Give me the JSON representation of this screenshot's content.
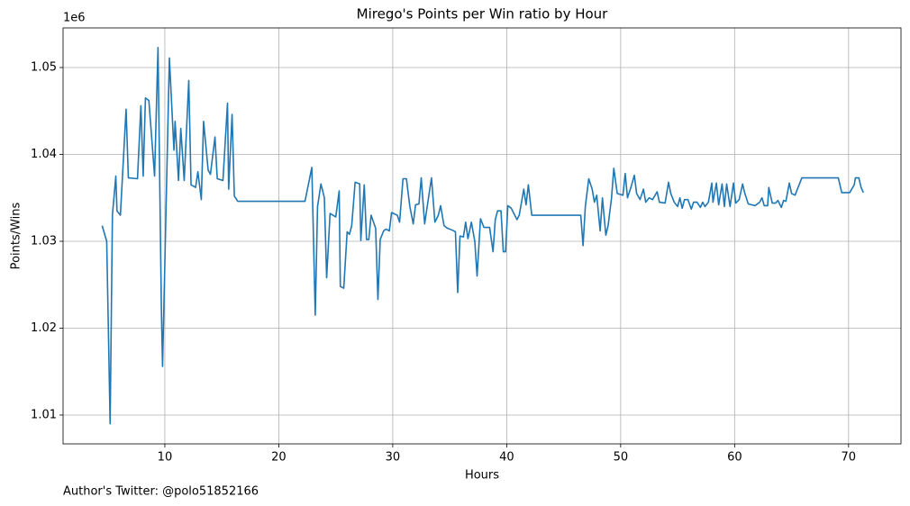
{
  "chart_data": {
    "type": "line",
    "title": "Mirego's Points per Win ratio by Hour",
    "x_label": "Hours",
    "y_label": "Points/Wins",
    "y_offset_label": "1e6",
    "footer": "Author's Twitter: @polo51852166",
    "color": "#1f77b4",
    "grid": true,
    "xlim": [
      1.07,
      74.6
    ],
    "ylim": [
      1006680,
      1054560
    ],
    "xticks": [
      10,
      20,
      30,
      40,
      50,
      60,
      70
    ],
    "yticks": [
      {
        "value": 1010000,
        "label": "1.01"
      },
      {
        "value": 1020000,
        "label": "1.02"
      },
      {
        "value": 1030000,
        "label": "1.03"
      },
      {
        "value": 1040000,
        "label": "1.04"
      },
      {
        "value": 1050000,
        "label": "1.05"
      }
    ],
    "x": [
      4.5,
      4.9,
      5.2,
      5.4,
      5.7,
      5.8,
      6.1,
      6.6,
      6.8,
      7.6,
      7.9,
      8.1,
      8.3,
      8.6,
      9.1,
      9.4,
      9.7,
      9.8,
      10.4,
      10.8,
      10.9,
      11.2,
      11.4,
      11.7,
      12.1,
      12.3,
      12.7,
      12.9,
      13.2,
      13.4,
      13.8,
      14.0,
      14.4,
      14.6,
      15.1,
      15.5,
      15.6,
      15.9,
      16.1,
      16.4,
      22.3,
      22.9,
      23.2,
      23.4,
      23.7,
      24.0,
      24.2,
      24.5,
      25.0,
      25.3,
      25.4,
      25.7,
      26.0,
      26.2,
      26.4,
      26.7,
      27.1,
      27.2,
      27.5,
      27.7,
      27.9,
      28.1,
      28.5,
      28.7,
      28.9,
      29.2,
      29.4,
      29.7,
      29.9,
      30.4,
      30.6,
      30.9,
      31.2,
      31.5,
      31.8,
      32.0,
      32.3,
      32.5,
      32.8,
      33.0,
      33.4,
      33.7,
      34.0,
      34.2,
      34.5,
      34.8,
      35.2,
      35.5,
      35.7,
      35.9,
      36.2,
      36.4,
      36.6,
      36.9,
      37.2,
      37.4,
      37.7,
      38.0,
      38.5,
      38.8,
      39.0,
      39.2,
      39.5,
      39.7,
      39.9,
      40.1,
      40.4,
      40.9,
      41.1,
      41.5,
      41.7,
      41.9,
      42.2,
      46.5,
      46.7,
      46.9,
      47.2,
      47.5,
      47.7,
      47.9,
      48.2,
      48.4,
      48.7,
      48.9,
      49.2,
      49.4,
      49.7,
      50.2,
      50.4,
      50.6,
      50.9,
      51.2,
      51.4,
      51.7,
      52.0,
      52.2,
      52.5,
      52.8,
      53.2,
      53.4,
      53.9,
      54.2,
      54.4,
      54.7,
      55.0,
      55.2,
      55.4,
      55.6,
      55.9,
      56.2,
      56.4,
      56.7,
      57.0,
      57.2,
      57.4,
      57.7,
      58.0,
      58.1,
      58.4,
      58.6,
      58.9,
      59.1,
      59.3,
      59.6,
      59.9,
      60.1,
      60.4,
      60.7,
      60.9,
      61.2,
      61.8,
      62.2,
      62.4,
      62.6,
      62.9,
      63.0,
      63.3,
      63.6,
      63.8,
      64.1,
      64.3,
      64.5,
      64.8,
      65.0,
      65.3,
      65.6,
      65.9,
      69.1,
      69.4,
      70.1,
      70.5,
      70.6,
      70.9,
      71.1,
      71.3
    ],
    "values": [
      1031800,
      1030000,
      1009000,
      1033000,
      1037500,
      1033500,
      1033000,
      1045200,
      1037300,
      1037200,
      1045600,
      1037500,
      1046500,
      1046200,
      1037500,
      1052300,
      1022000,
      1015600,
      1051100,
      1040500,
      1043800,
      1037000,
      1043000,
      1037000,
      1048500,
      1036500,
      1036200,
      1038000,
      1034800,
      1043800,
      1038200,
      1037700,
      1042000,
      1037200,
      1037000,
      1045900,
      1036000,
      1044600,
      1035200,
      1034600,
      1034600,
      1038500,
      1021500,
      1034000,
      1036600,
      1035000,
      1025800,
      1033200,
      1032800,
      1035800,
      1024800,
      1024600,
      1031100,
      1030800,
      1031800,
      1036800,
      1036600,
      1030100,
      1036500,
      1030200,
      1030200,
      1033000,
      1031500,
      1023300,
      1030200,
      1031200,
      1031400,
      1031200,
      1033300,
      1033000,
      1032200,
      1037200,
      1037200,
      1034000,
      1032000,
      1034200,
      1034300,
      1037300,
      1032000,
      1033800,
      1037300,
      1032200,
      1033000,
      1034100,
      1031800,
      1031500,
      1031300,
      1031100,
      1024100,
      1030600,
      1030500,
      1032200,
      1030300,
      1032200,
      1030000,
      1026000,
      1032600,
      1031600,
      1031600,
      1028800,
      1032500,
      1033500,
      1033500,
      1028800,
      1028800,
      1034100,
      1033800,
      1032500,
      1033000,
      1036000,
      1034200,
      1036500,
      1033000,
      1033000,
      1029500,
      1034000,
      1037200,
      1036000,
      1034500,
      1035300,
      1031200,
      1035000,
      1030700,
      1031800,
      1035000,
      1038400,
      1035500,
      1035300,
      1037800,
      1035000,
      1036200,
      1037600,
      1035500,
      1034800,
      1036000,
      1034500,
      1035000,
      1034800,
      1035700,
      1034500,
      1034400,
      1036800,
      1035500,
      1034500,
      1034000,
      1035000,
      1033800,
      1034800,
      1034800,
      1033700,
      1034500,
      1034500,
      1033900,
      1034500,
      1034000,
      1034500,
      1036700,
      1034500,
      1036700,
      1034200,
      1036600,
      1034000,
      1036600,
      1034000,
      1036700,
      1034400,
      1034800,
      1036600,
      1035500,
      1034300,
      1034100,
      1034500,
      1035000,
      1034100,
      1034100,
      1036200,
      1034400,
      1034400,
      1034700,
      1033900,
      1034700,
      1034600,
      1036700,
      1035500,
      1035300,
      1036300,
      1037300,
      1037300,
      1035600,
      1035600,
      1036500,
      1037300,
      1037300,
      1036200,
      1035600
    ]
  }
}
